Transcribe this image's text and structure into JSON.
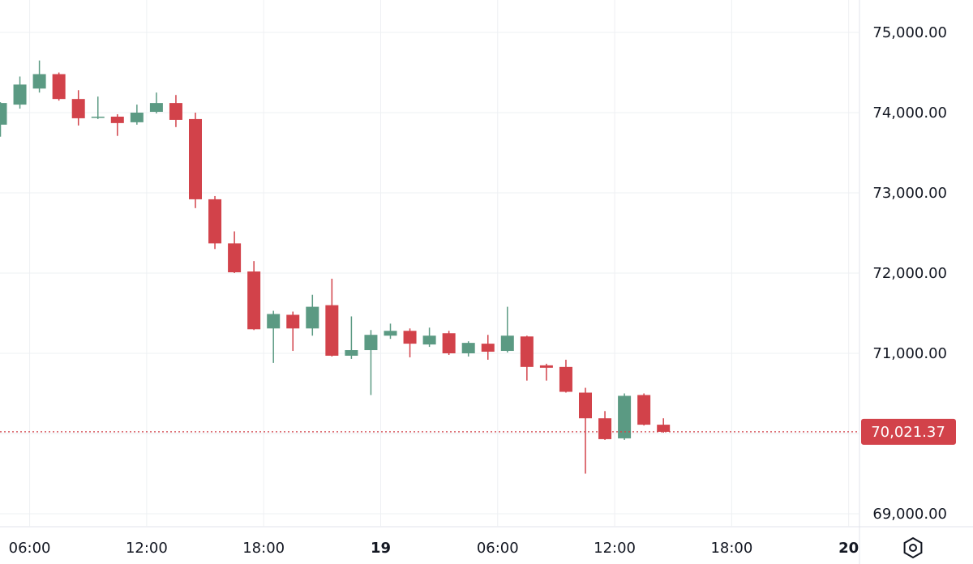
{
  "chart_data": {
    "type": "candlestick",
    "title": "",
    "xlabel": "",
    "ylabel": "",
    "ylim": [
      68900,
      75350
    ],
    "y_ticks": [
      {
        "value": 75000,
        "label": "75,000.00"
      },
      {
        "value": 74000,
        "label": "74,000.00"
      },
      {
        "value": 73000,
        "label": "73,000.00"
      },
      {
        "value": 72000,
        "label": "72,000.00"
      },
      {
        "value": 71000,
        "label": "71,000.00"
      },
      {
        "value": 69000,
        "label": "69,000.00"
      }
    ],
    "x_ticks": [
      {
        "index": 1.5,
        "label": "06:00",
        "bold": false
      },
      {
        "index": 7.5,
        "label": "12:00",
        "bold": false
      },
      {
        "index": 13.5,
        "label": "18:00",
        "bold": false
      },
      {
        "index": 19.5,
        "label": "19",
        "bold": true
      },
      {
        "index": 25.5,
        "label": "06:00",
        "bold": false
      },
      {
        "index": 31.5,
        "label": "12:00",
        "bold": false
      },
      {
        "index": 37.5,
        "label": "18:00",
        "bold": false
      },
      {
        "index": 43.5,
        "label": "20",
        "bold": true
      }
    ],
    "grid": true,
    "current_price": {
      "value": 70021.37,
      "label": "70,021.37"
    },
    "up_color": "#5b9a83",
    "down_color": "#d2424a",
    "grid_color": "#eef0f3",
    "candles": [
      {
        "o": 73850,
        "h": 74130,
        "l": 73700,
        "c": 74120
      },
      {
        "o": 74100,
        "h": 74450,
        "l": 74050,
        "c": 74350
      },
      {
        "o": 74300,
        "h": 74650,
        "l": 74250,
        "c": 74480
      },
      {
        "o": 74480,
        "h": 74500,
        "l": 74150,
        "c": 74170
      },
      {
        "o": 74170,
        "h": 74280,
        "l": 73840,
        "c": 73930
      },
      {
        "o": 73940,
        "h": 74200,
        "l": 73920,
        "c": 73950
      },
      {
        "o": 73950,
        "h": 73980,
        "l": 73710,
        "c": 73870
      },
      {
        "o": 73880,
        "h": 74100,
        "l": 73850,
        "c": 74000
      },
      {
        "o": 74010,
        "h": 74250,
        "l": 73990,
        "c": 74120
      },
      {
        "o": 74120,
        "h": 74220,
        "l": 73820,
        "c": 73910
      },
      {
        "o": 73920,
        "h": 74000,
        "l": 72810,
        "c": 72920
      },
      {
        "o": 72920,
        "h": 72960,
        "l": 72300,
        "c": 72370
      },
      {
        "o": 72370,
        "h": 72520,
        "l": 72000,
        "c": 72010
      },
      {
        "o": 72020,
        "h": 72150,
        "l": 71290,
        "c": 71300
      },
      {
        "o": 71310,
        "h": 71530,
        "l": 70880,
        "c": 71490
      },
      {
        "o": 71480,
        "h": 71520,
        "l": 71030,
        "c": 71310
      },
      {
        "o": 71310,
        "h": 71730,
        "l": 71220,
        "c": 71580
      },
      {
        "o": 71600,
        "h": 71930,
        "l": 70960,
        "c": 70970
      },
      {
        "o": 70970,
        "h": 71460,
        "l": 70930,
        "c": 71040
      },
      {
        "o": 71040,
        "h": 71290,
        "l": 70480,
        "c": 71230
      },
      {
        "o": 71220,
        "h": 71370,
        "l": 71180,
        "c": 71280
      },
      {
        "o": 71280,
        "h": 71310,
        "l": 70950,
        "c": 71120
      },
      {
        "o": 71110,
        "h": 71320,
        "l": 71080,
        "c": 71220
      },
      {
        "o": 71250,
        "h": 71280,
        "l": 70980,
        "c": 71000
      },
      {
        "o": 71000,
        "h": 71150,
        "l": 70960,
        "c": 71130
      },
      {
        "o": 71120,
        "h": 71230,
        "l": 70920,
        "c": 71020
      },
      {
        "o": 71030,
        "h": 71580,
        "l": 71010,
        "c": 71220
      },
      {
        "o": 71210,
        "h": 71220,
        "l": 70660,
        "c": 70830
      },
      {
        "o": 70850,
        "h": 70870,
        "l": 70660,
        "c": 70820
      },
      {
        "o": 70830,
        "h": 70920,
        "l": 70510,
        "c": 70520
      },
      {
        "o": 70510,
        "h": 70570,
        "l": 69500,
        "c": 70190
      },
      {
        "o": 70190,
        "h": 70280,
        "l": 69920,
        "c": 69930
      },
      {
        "o": 69940,
        "h": 70500,
        "l": 69920,
        "c": 70470
      },
      {
        "o": 70480,
        "h": 70500,
        "l": 70100,
        "c": 70110
      },
      {
        "o": 70110,
        "h": 70190,
        "l": 70010,
        "c": 70021.37
      }
    ]
  }
}
